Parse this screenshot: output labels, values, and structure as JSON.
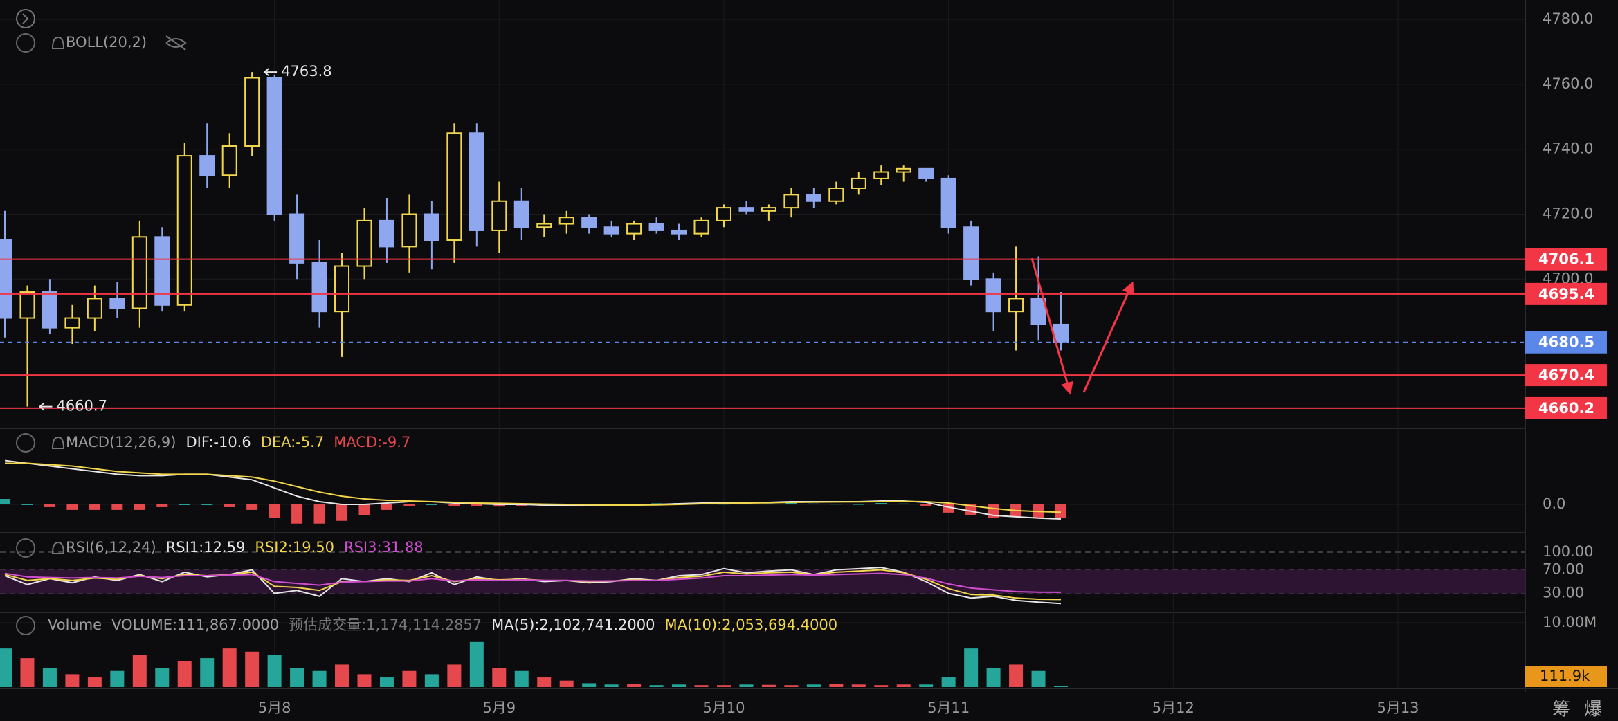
{
  "toolbar": {
    "buttons": [
      "筹",
      "爆"
    ]
  },
  "chart_data": [
    {
      "type": "candlestick",
      "indicator": "BOLL(20,2)",
      "x": [
        0,
        3,
        6,
        9,
        12,
        15,
        18,
        21,
        24,
        27,
        30,
        33,
        36,
        39,
        42,
        45,
        48,
        51,
        54,
        57,
        60,
        63,
        66,
        69,
        72,
        75,
        78,
        81,
        84,
        87,
        90,
        93,
        96,
        99,
        102,
        105,
        108,
        111,
        114,
        117,
        120,
        123,
        126,
        129,
        132,
        135,
        138,
        141
      ],
      "open": [
        4712,
        4688,
        4696,
        4685,
        4688,
        4694,
        4691,
        4713,
        4692,
        4738,
        4732,
        4741,
        4762,
        4720,
        4705,
        4690,
        4704,
        4718,
        4710,
        4720,
        4712,
        4745,
        4715,
        4724,
        4716,
        4717,
        4719,
        4716,
        4714,
        4717,
        4715,
        4714,
        4718,
        4722,
        4721,
        4722,
        4726,
        4724,
        4728,
        4731,
        4733,
        4734,
        4731,
        4716,
        4700,
        4690,
        4694,
        4686
      ],
      "high": [
        4721,
        4698,
        4700,
        4692,
        4698,
        4699,
        4718,
        4716,
        4742,
        4748,
        4745,
        4763.8,
        4763,
        4726,
        4712,
        4708,
        4722,
        4725,
        4726,
        4724,
        4748,
        4748,
        4730,
        4728,
        4720,
        4721,
        4720,
        4718,
        4718,
        4719,
        4717,
        4719,
        4723,
        4724,
        4723,
        4728,
        4728,
        4730,
        4733,
        4735,
        4735,
        4734,
        4732,
        4718,
        4702,
        4710,
        4707,
        4696
      ],
      "low": [
        4682,
        4660.7,
        4683,
        4680,
        4684,
        4688,
        4685,
        4690,
        4690,
        4728,
        4728,
        4738,
        4718,
        4700,
        4685,
        4676,
        4700,
        4705,
        4702,
        4703,
        4705,
        4710,
        4708,
        4712,
        4713,
        4714,
        4714,
        4713,
        4712,
        4714,
        4712,
        4713,
        4716,
        4720,
        4718,
        4719,
        4722,
        4723,
        4726,
        4729,
        4730,
        4730,
        4714,
        4698,
        4684,
        4678,
        4681,
        4678
      ],
      "close": [
        4688,
        4696,
        4685,
        4688,
        4694,
        4691,
        4713,
        4692,
        4738,
        4732,
        4741,
        4762,
        4720,
        4705,
        4690,
        4704,
        4718,
        4710,
        4720,
        4712,
        4745,
        4715,
        4724,
        4716,
        4717,
        4719,
        4716,
        4714,
        4717,
        4715,
        4714,
        4718,
        4722,
        4721,
        4722,
        4726,
        4724,
        4728,
        4731,
        4733,
        4734,
        4731,
        4716,
        4700,
        4690,
        4694,
        4686,
        4680.5
      ],
      "up_color": "#f2d64b",
      "down_color": "#8ea7ef",
      "xlim": [
        0,
        203
      ],
      "xticks": [
        {
          "value": 36,
          "label": "5月8"
        },
        {
          "value": 66,
          "label": "5月9"
        },
        {
          "value": 96,
          "label": "5月10"
        },
        {
          "value": 126,
          "label": "5月11"
        },
        {
          "value": 156,
          "label": "5月12"
        },
        {
          "value": 186,
          "label": "5月13"
        }
      ],
      "ylim": [
        4654,
        4786
      ],
      "yticks": [
        {
          "value": 4780,
          "label": "4780.0"
        },
        {
          "value": 4760,
          "label": "4760.0"
        },
        {
          "value": 4740,
          "label": "4740.0"
        },
        {
          "value": 4720,
          "label": "4720.0"
        },
        {
          "value": 4700,
          "label": "4700.0"
        }
      ],
      "price_lines": [
        {
          "value": 4706.1,
          "color": "#f23645"
        },
        {
          "value": 4695.4,
          "color": "#f23645"
        },
        {
          "value": 4680.5,
          "color": "#5b87e8",
          "dashed": true
        },
        {
          "value": 4670.4,
          "color": "#f23645"
        },
        {
          "value": 4660.2,
          "color": "#f23645"
        }
      ],
      "annotations": [
        {
          "x": 33,
          "value": 4763.8
        },
        {
          "x": 3,
          "value": 4660.7
        }
      ]
    },
    {
      "type": "macd",
      "indicator": "MACD(12,26,9)",
      "legend": [
        {
          "text": "DIF:-10.6",
          "color": "#e6e6e6"
        },
        {
          "text": "DEA:-5.7",
          "color": "#f2d64b"
        },
        {
          "text": "MACD:-9.7",
          "color": "#e5484d"
        }
      ],
      "series": [
        {
          "color": "#e6e6e6",
          "values": [
            32,
            30,
            28,
            26,
            24,
            22,
            21,
            21,
            22,
            22,
            20,
            18,
            12,
            6,
            2,
            0,
            0,
            1,
            2,
            2,
            1,
            0.5,
            0,
            0,
            -0.5,
            -0.5,
            -1,
            -1,
            -0.5,
            0,
            0.5,
            1,
            1,
            1.5,
            1.5,
            2,
            2,
            2,
            2,
            2.5,
            2.5,
            1.5,
            -2,
            -5,
            -8,
            -9,
            -10,
            -10.6
          ]
        },
        {
          "color": "#f2d64b",
          "values": [
            30,
            30,
            29,
            28,
            26,
            24,
            23,
            22,
            22,
            22,
            21,
            20,
            17,
            13,
            9,
            6,
            4,
            3,
            2.5,
            2,
            1.5,
            1,
            0.8,
            0.5,
            0.2,
            0,
            -0.3,
            -0.5,
            -0.5,
            -0.4,
            0,
            0.5,
            0.8,
            1,
            1.2,
            1.5,
            1.7,
            1.8,
            1.9,
            2,
            2.2,
            2,
            1,
            -1,
            -3,
            -4.5,
            -5.2,
            -5.7
          ]
        }
      ],
      "histogram": {
        "up_color": "#26a69a",
        "down_color": "#e5484d",
        "values": [
          4,
          0,
          -2,
          -4,
          -4,
          -4,
          -4,
          -2,
          0,
          0,
          -2,
          -4,
          -10,
          -14,
          -14,
          -12,
          -8,
          -4,
          -1,
          0,
          -1,
          -1,
          -1.6,
          -1,
          -1.4,
          -1,
          -1.4,
          -1,
          0,
          0.8,
          1,
          1,
          0.4,
          1,
          0.6,
          1,
          0.6,
          0.4,
          0.2,
          1,
          0.6,
          -1,
          -6,
          -8,
          -10,
          -9,
          -9.6,
          -9.7
        ]
      },
      "ylim": [
        -20.7,
        55.5
      ],
      "yticks": [
        {
          "value": 0,
          "label": "0.0"
        }
      ]
    },
    {
      "type": "rsi",
      "indicator": "RSI(6,12,24)",
      "legend": [
        {
          "text": "RSI1:12.59",
          "color": "#e6e6e6"
        },
        {
          "text": "RSI2:19.50",
          "color": "#f2d64b"
        },
        {
          "text": "RSI3:31.88",
          "color": "#d04fd0"
        }
      ],
      "series": [
        {
          "color": "#e6e6e6",
          "values": [
            60,
            45,
            55,
            48,
            58,
            52,
            62,
            50,
            66,
            58,
            62,
            70,
            30,
            35,
            25,
            55,
            50,
            55,
            50,
            65,
            45,
            58,
            52,
            55,
            50,
            52,
            48,
            50,
            55,
            52,
            60,
            62,
            72,
            65,
            68,
            70,
            62,
            70,
            72,
            74,
            66,
            50,
            30,
            22,
            25,
            18,
            15,
            12.59
          ]
        },
        {
          "color": "#f2d64b",
          "values": [
            62,
            52,
            55,
            52,
            56,
            54,
            60,
            55,
            62,
            60,
            62,
            66,
            42,
            40,
            35,
            50,
            50,
            53,
            52,
            60,
            50,
            55,
            53,
            54,
            52,
            52,
            50,
            51,
            53,
            52,
            57,
            59,
            66,
            63,
            65,
            66,
            62,
            66,
            68,
            70,
            65,
            54,
            38,
            28,
            27,
            22,
            20,
            19.5
          ]
        },
        {
          "color": "#d04fd0",
          "values": [
            64,
            58,
            57,
            56,
            57,
            56,
            59,
            57,
            60,
            60,
            61,
            62,
            50,
            47,
            44,
            49,
            50,
            51,
            51,
            55,
            51,
            53,
            52,
            53,
            52,
            52,
            51,
            51,
            52,
            52,
            54,
            56,
            60,
            60,
            61,
            62,
            61,
            62,
            63,
            64,
            62,
            56,
            46,
            39,
            36,
            33,
            32,
            31.88
          ]
        }
      ],
      "band": {
        "from": 30,
        "to": 70,
        "color": "#2e1433"
      },
      "ylim": [
        0,
        133
      ],
      "yticks": [
        {
          "value": 100,
          "label": "100.00"
        },
        {
          "value": 70,
          "label": "70.00"
        },
        {
          "value": 30,
          "label": "30.00"
        }
      ]
    },
    {
      "type": "volume",
      "indicator": "Volume",
      "legend": [
        {
          "text": "VOLUME:111,867.0000",
          "color": "#a0a0a0"
        },
        {
          "text": "预估成交量:1,174,114.2857",
          "color": "#777777"
        },
        {
          "text": "MA(5):2,102,741.2000",
          "color": "#e6e6e6"
        },
        {
          "text": "MA(10):2,053,694.4000",
          "color": "#f2d64b"
        }
      ],
      "values": [
        6000000,
        4500000,
        3000000,
        2000000,
        1500000,
        2500000,
        5000000,
        3000000,
        4000000,
        4500000,
        6000000,
        5500000,
        5000000,
        3000000,
        2500000,
        3500000,
        2000000,
        1500000,
        2500000,
        2000000,
        3500000,
        7000000,
        3000000,
        2500000,
        1500000,
        1000000,
        600000,
        400000,
        500000,
        300000,
        400000,
        300000,
        300000,
        400000,
        350000,
        300000,
        400000,
        500000,
        400000,
        300000,
        400000,
        400000,
        1500000,
        6000000,
        3000000,
        3500000,
        2500000,
        111867
      ],
      "up_color": "#e5484d",
      "down_color": "#26a69a",
      "last_label": "111.9k",
      "last_label_color": "#e8971a",
      "ylim": [
        0,
        11600000
      ],
      "yticks": [
        {
          "value": 10000000,
          "label": "10.00M"
        }
      ]
    }
  ]
}
